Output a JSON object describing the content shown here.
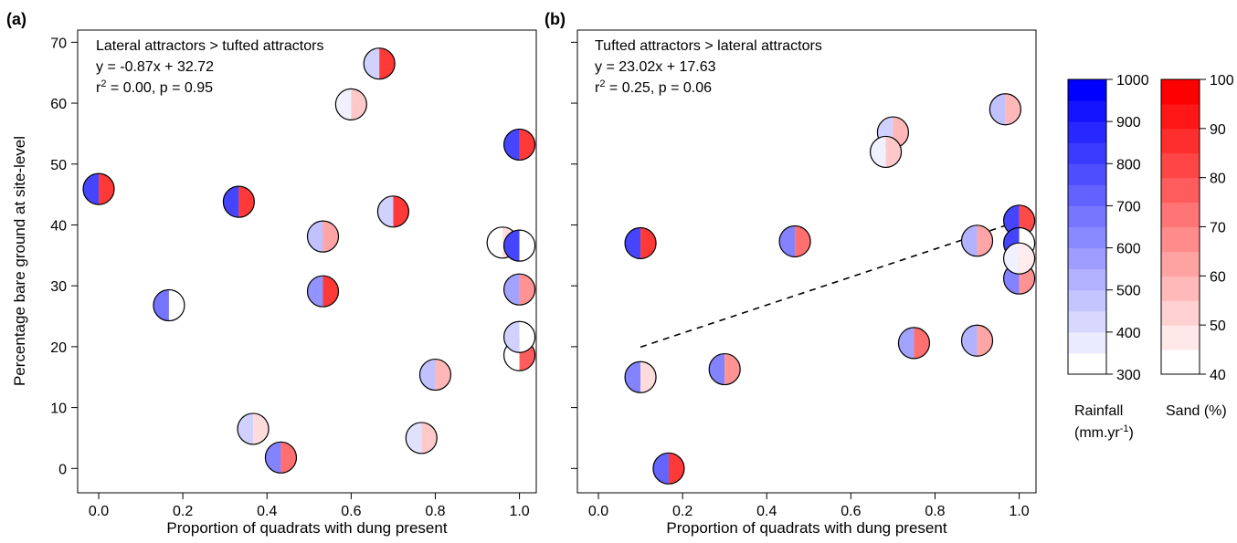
{
  "chart_data": [
    {
      "type": "scatter",
      "panel_label": "(a)",
      "annotation": {
        "title": "Lateral attractors > tufted attractors",
        "equation": "y = -0.87x + 32.72",
        "r2_prefix": "r",
        "r2_sup": "2",
        "r2_rest": " = 0.00, p = 0.95"
      },
      "xlabel": "Proportion of quadrats with dung present",
      "ylabel": "Percentage bare ground at site-level",
      "xlim": [
        -0.05,
        1.04
      ],
      "ylim": [
        -4,
        72
      ],
      "xticks": [
        0,
        0.2,
        0.4,
        0.6,
        0.8,
        1.0
      ],
      "xtick_labels": [
        "0.0",
        "0.2",
        "0.4",
        "0.6",
        "0.8",
        "1.0"
      ],
      "yticks": [
        0,
        10,
        20,
        30,
        40,
        50,
        60,
        70
      ],
      "ytick_labels": [
        "0",
        "10",
        "20",
        "30",
        "40",
        "50",
        "60",
        "70"
      ],
      "y_tick_labels_shown": true,
      "trendline": null,
      "points": [
        {
          "x": 0.0,
          "y": 45.9,
          "rainfall": 900,
          "sand": 95
        },
        {
          "x": 0.167,
          "y": 26.8,
          "rainfall": 750,
          "sand": 40
        },
        {
          "x": 0.333,
          "y": 43.8,
          "rainfall": 900,
          "sand": 95
        },
        {
          "x": 0.367,
          "y": 6.5,
          "rainfall": 450,
          "sand": 50
        },
        {
          "x": 0.433,
          "y": 1.8,
          "rainfall": 700,
          "sand": 80
        },
        {
          "x": 0.533,
          "y": 38.1,
          "rainfall": 500,
          "sand": 65
        },
        {
          "x": 0.533,
          "y": 29.1,
          "rainfall": 650,
          "sand": 95
        },
        {
          "x": 0.6,
          "y": 59.8,
          "rainfall": 350,
          "sand": 55
        },
        {
          "x": 0.667,
          "y": 66.5,
          "rainfall": 450,
          "sand": 95
        },
        {
          "x": 0.7,
          "y": 42.2,
          "rainfall": 450,
          "sand": 95
        },
        {
          "x": 0.767,
          "y": 5.0,
          "rainfall": 400,
          "sand": 55
        },
        {
          "x": 0.8,
          "y": 15.4,
          "rainfall": 500,
          "sand": 60
        },
        {
          "x": 0.96,
          "y": 37.1,
          "rainfall": 300,
          "sand": 50
        },
        {
          "x": 1.0,
          "y": 53.2,
          "rainfall": 900,
          "sand": 95
        },
        {
          "x": 1.0,
          "y": 36.6,
          "rainfall": 900,
          "sand": 40
        },
        {
          "x": 1.0,
          "y": 29.4,
          "rainfall": 600,
          "sand": 70
        },
        {
          "x": 1.0,
          "y": 18.6,
          "rainfall": 300,
          "sand": 85
        },
        {
          "x": 1.0,
          "y": 21.6,
          "rainfall": 450,
          "sand": 40
        }
      ]
    },
    {
      "type": "scatter",
      "panel_label": "(b)",
      "annotation": {
        "title": "Tufted attractors > lateral attractors",
        "equation": "y = 23.02x + 17.63",
        "r2_prefix": "r",
        "r2_sup": "2",
        "r2_rest": " = 0.25, p = 0.06"
      },
      "xlabel": "Proportion of quadrats with dung present",
      "ylabel": "",
      "xlim": [
        -0.05,
        1.04
      ],
      "ylim": [
        -4,
        72
      ],
      "xticks": [
        0,
        0.2,
        0.4,
        0.6,
        0.8,
        1.0
      ],
      "xtick_labels": [
        "0.0",
        "0.2",
        "0.4",
        "0.6",
        "0.8",
        "1.0"
      ],
      "yticks": [
        0,
        10,
        20,
        30,
        40,
        50,
        60,
        70
      ],
      "ytick_labels": [],
      "y_tick_labels_shown": false,
      "trendline": {
        "slope": 23.02,
        "intercept": 17.63,
        "x_range": [
          0.1,
          1.0
        ],
        "style": "dashed"
      },
      "points": [
        {
          "x": 0.1,
          "y": 37.0,
          "rainfall": 900,
          "sand": 95
        },
        {
          "x": 0.1,
          "y": 15.0,
          "rainfall": 700,
          "sand": 50
        },
        {
          "x": 0.167,
          "y": 0.0,
          "rainfall": 800,
          "sand": 95
        },
        {
          "x": 0.3,
          "y": 16.3,
          "rainfall": 700,
          "sand": 70
        },
        {
          "x": 0.467,
          "y": 37.3,
          "rainfall": 700,
          "sand": 80
        },
        {
          "x": 0.7,
          "y": 55.2,
          "rainfall": 450,
          "sand": 60
        },
        {
          "x": 0.683,
          "y": 52.0,
          "rainfall": 350,
          "sand": 55
        },
        {
          "x": 0.75,
          "y": 20.6,
          "rainfall": 600,
          "sand": 80
        },
        {
          "x": 0.9,
          "y": 37.4,
          "rainfall": 550,
          "sand": 65
        },
        {
          "x": 0.9,
          "y": 21.0,
          "rainfall": 550,
          "sand": 65
        },
        {
          "x": 0.967,
          "y": 59.0,
          "rainfall": 500,
          "sand": 60
        },
        {
          "x": 1.0,
          "y": 40.7,
          "rainfall": 900,
          "sand": 90
        },
        {
          "x": 1.0,
          "y": 37.0,
          "rainfall": 900,
          "sand": 40
        },
        {
          "x": 1.0,
          "y": 31.2,
          "rainfall": 700,
          "sand": 70
        },
        {
          "x": 1.0,
          "y": 34.5,
          "rainfall": 350,
          "sand": 45
        }
      ]
    }
  ],
  "legends": [
    {
      "name": "rainfall",
      "label_line1": "Rainfall",
      "label_line2_main": "(mm.yr",
      "label_line2_sup": "-1",
      "label_line2_close": ")",
      "min": 300,
      "max": 1000,
      "ticks": [
        300,
        400,
        500,
        600,
        700,
        800,
        900,
        1000
      ],
      "tick_labels": [
        "300",
        "400",
        "500",
        "600",
        "700",
        "800",
        "900",
        "1000"
      ],
      "bands": 14,
      "color_low": "#ffffff",
      "color_high": "#0000ff"
    },
    {
      "name": "sand",
      "label_line1": "Sand (%)",
      "min": 40,
      "max": 100,
      "ticks": [
        40,
        50,
        60,
        70,
        80,
        90,
        100
      ],
      "tick_labels": [
        "40",
        "50",
        "60",
        "70",
        "80",
        "90",
        "100"
      ],
      "bands": 12,
      "color_low": "#ffffff",
      "color_high": "#ff0000"
    }
  ]
}
